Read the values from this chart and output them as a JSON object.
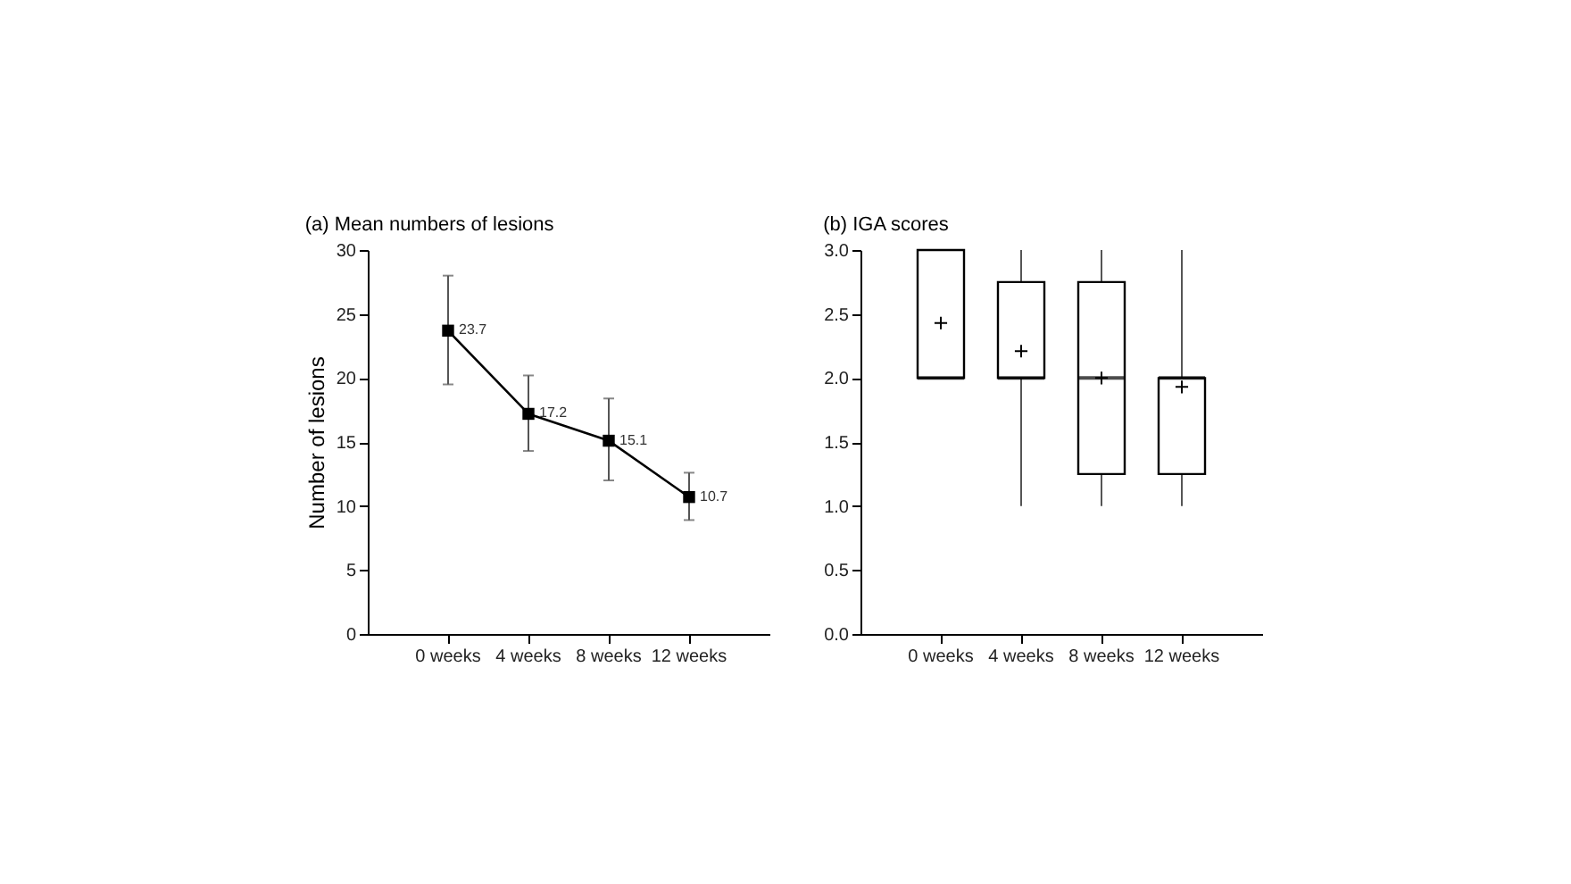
{
  "chart_data": [
    {
      "type": "line",
      "title": "(a) Mean numbers of lesions",
      "ylabel": "Number of lesions",
      "categories": [
        "0 weeks",
        "4 weeks",
        "8 weeks",
        "12 weeks"
      ],
      "series": [
        {
          "color": "#000000",
          "values": [
            23.7,
            17.2,
            15.1,
            10.7
          ],
          "errors": [
            [
              19.5,
              28
            ],
            [
              14.3,
              20.2
            ],
            [
              12,
              18.4
            ],
            [
              8.9,
              12.6
            ]
          ]
        }
      ],
      "marker": "square",
      "data_labels": true,
      "ylim": [
        0,
        30
      ],
      "yticks": [
        0,
        5,
        10,
        15,
        20,
        25,
        30
      ],
      "grid": false
    },
    {
      "type": "box",
      "title": "(b) IGA scores",
      "categories": [
        "0 weeks",
        "4 weeks",
        "8 weeks",
        "12 weeks"
      ],
      "boxes": [
        {
          "low": 2,
          "q1": 2,
          "median": 2,
          "q3": 3,
          "high": 3,
          "mean": 2.43
        },
        {
          "low": 1,
          "q1": 2,
          "median": 2,
          "q3": 2.75,
          "high": 3,
          "mean": 2.21
        },
        {
          "low": 1,
          "q1": 1.25,
          "median": 2,
          "q3": 2.75,
          "high": 3,
          "mean": 2.0
        },
        {
          "low": 1,
          "q1": 1.25,
          "median": 2,
          "q3": 2,
          "high": 3,
          "mean": 1.93
        }
      ],
      "ylim": [
        0,
        3
      ],
      "yticks": [
        {
          "value": 0,
          "label": "0.0"
        },
        {
          "value": 0.5,
          "label": "0.5"
        },
        {
          "value": 1,
          "label": "1.0"
        },
        {
          "value": 1.5,
          "label": "1.5"
        },
        {
          "value": 2,
          "label": "2.0"
        },
        {
          "value": 2.5,
          "label": "2.5"
        },
        {
          "value": 3,
          "label": "3.0"
        }
      ],
      "grid": false
    }
  ]
}
